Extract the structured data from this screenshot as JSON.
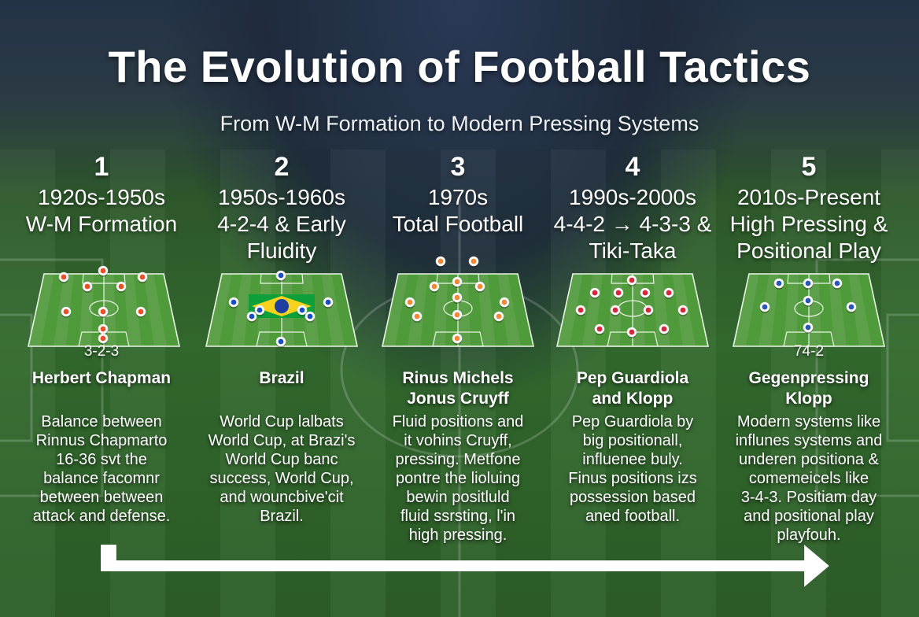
{
  "header": {
    "title": "The Evolution of Football Tactics",
    "subtitle": "From W-M Formation to Modern Pressing Systems"
  },
  "stages": [
    {
      "number": "1",
      "era": "1920s-1950s",
      "name_lines": [
        "W-M Formation"
      ],
      "formation_label": "3-2-3",
      "person_lines": [
        "Herbert Chapman"
      ],
      "description_lines": [
        "Balance between",
        "Rinnus Chapmarto",
        "16-36 svt the",
        "balance facomnr",
        "between between",
        "attack and defense."
      ],
      "player_color": "#e8502a"
    },
    {
      "number": "2",
      "era": "1950s-1960s",
      "name_lines": [
        "4-2-4 & Early",
        "Fluidity"
      ],
      "formation_label": "",
      "person_lines": [
        "Brazil"
      ],
      "description_lines": [
        "World Cup lalbats",
        "World Cup, at Brazi's",
        "World Cup banc",
        "success, World Cup,",
        "and wouncbive'cit",
        "Brazil."
      ],
      "player_color": "#1a4fc4"
    },
    {
      "number": "3",
      "era": "1970s",
      "name_lines": [
        "Total Football"
      ],
      "formation_label": "",
      "person_lines": [
        "Rinus Michels",
        "Jonus Cruyff"
      ],
      "description_lines": [
        "Fluid positions and",
        "it vohins Cruyff,",
        "pressing. Metfone",
        "pontre the lioluing",
        "bewin positluld",
        "fluid ssrsting, l'in",
        "high pressing."
      ],
      "player_color": "#f08a3a"
    },
    {
      "number": "4",
      "era": "1990s-2000s",
      "name_lines": [
        "4-4-2 → 4-3-3 &",
        "Tiki-Taka"
      ],
      "formation_label": "",
      "person_lines": [
        "Pep Guardiola",
        "and Klopp"
      ],
      "description_lines": [
        "Pep Guardiola by",
        "big positionall,",
        "influenee buly.",
        "Finus positions izs",
        "possession based",
        "aned football."
      ],
      "player_color": "#d8263a"
    },
    {
      "number": "5",
      "era": "2010s-Present",
      "name_lines": [
        "High Pressing &",
        "Positional Play"
      ],
      "formation_label": "74-2",
      "person_lines": [
        "Gegenpressing",
        "Klopp"
      ],
      "description_lines": [
        "Modern systems like",
        "influnes systems and",
        "underen positiona &",
        "comemeicels like",
        "3-4-3. Positiam day",
        "and positional play",
        "playfouh."
      ],
      "player_color": "#2a56b8"
    }
  ],
  "colors": {
    "background_top": "#243247",
    "pitch_green": "#336a2e",
    "text": "#ffffff",
    "arrow": "#ffffff"
  }
}
